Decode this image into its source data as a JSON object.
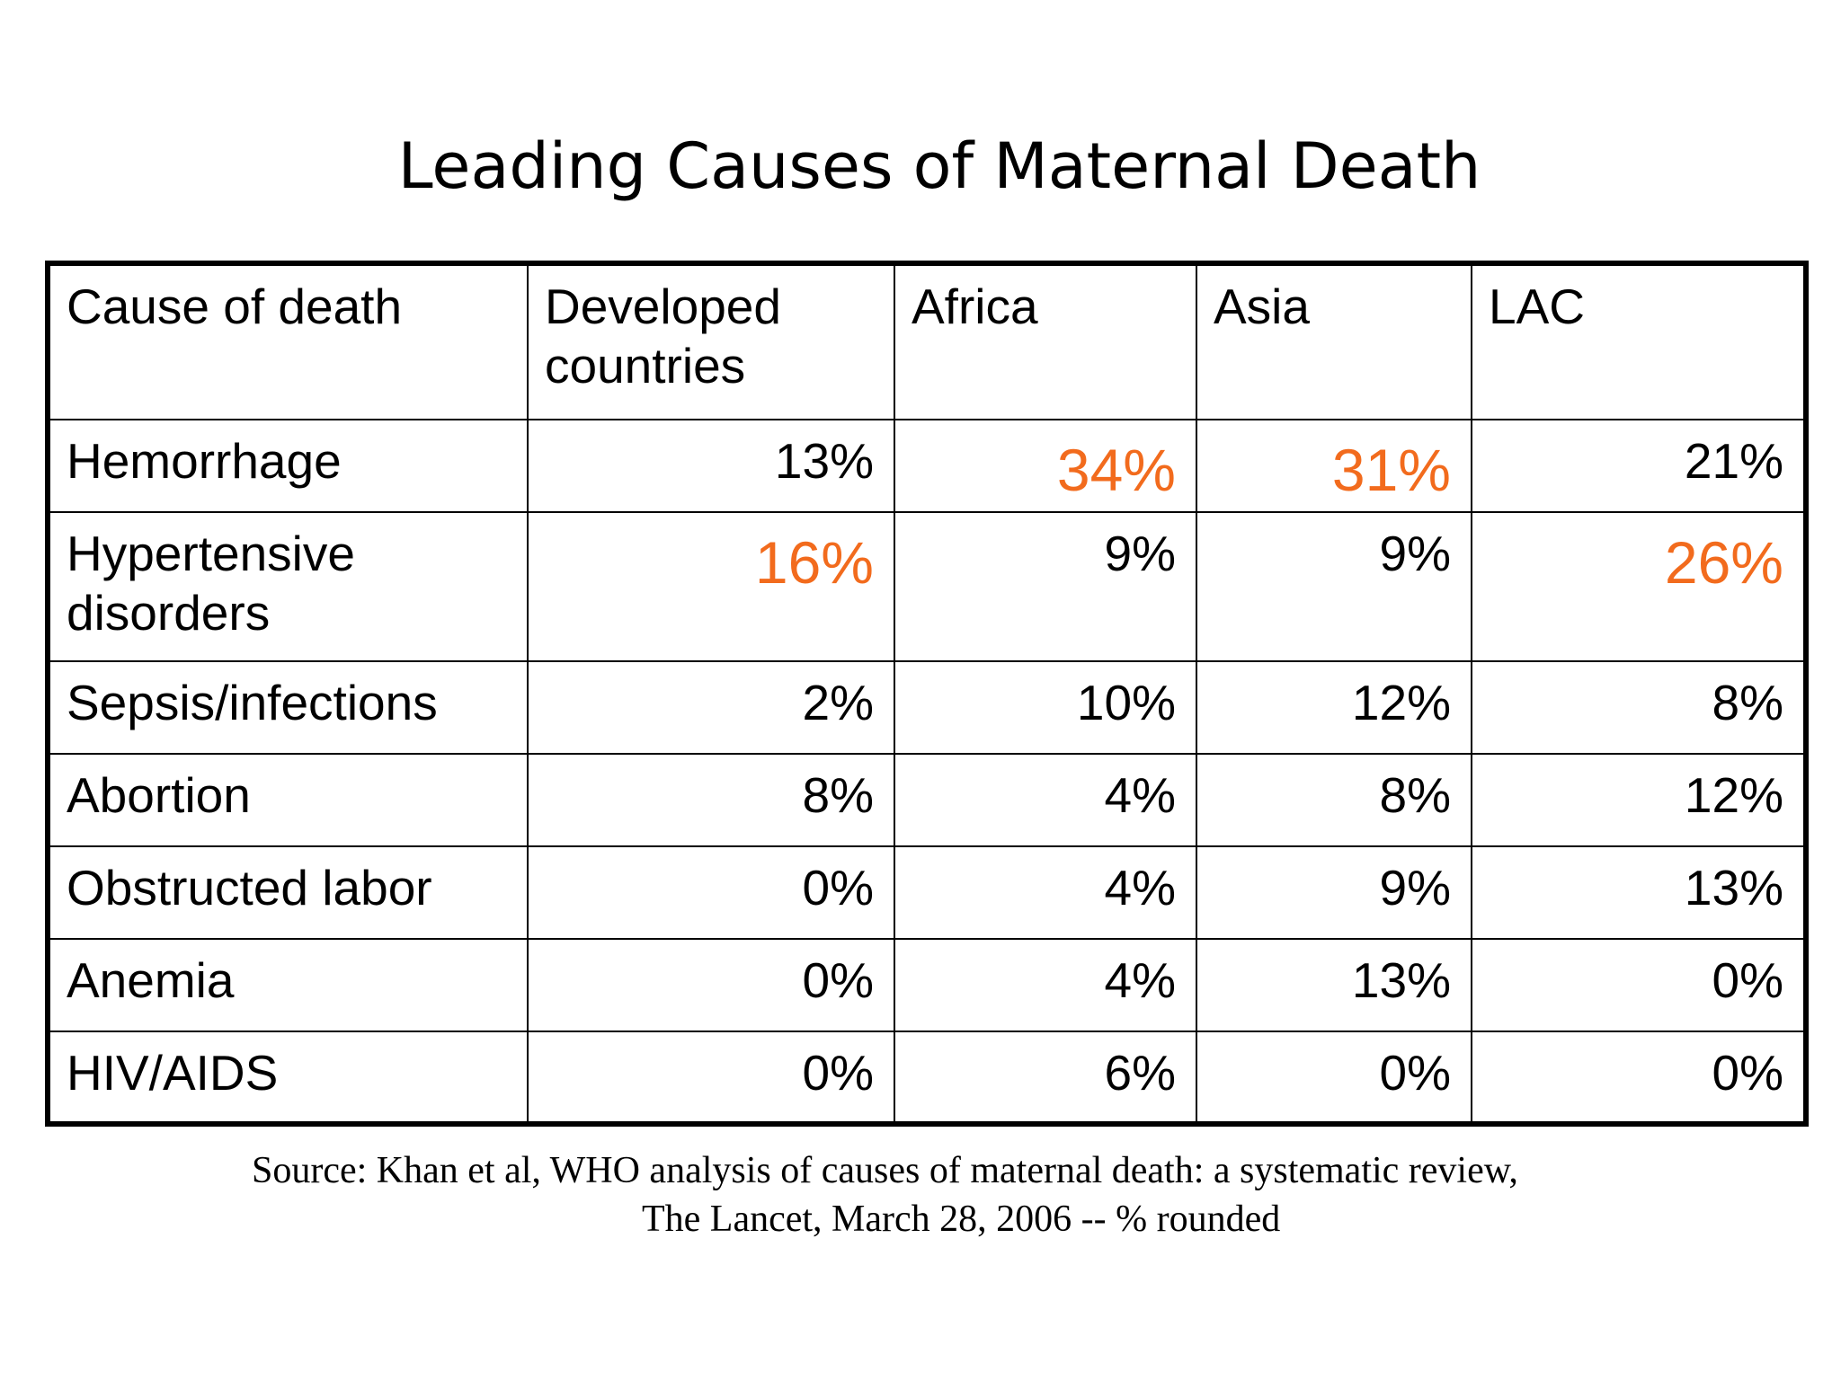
{
  "title": "Leading Causes of Maternal Death",
  "table": {
    "headers": [
      "Cause of death",
      "Developed countries",
      "Africa",
      "Asia",
      "LAC"
    ],
    "rows": [
      {
        "cause": "Hemorrhage",
        "values": [
          "13%",
          "34%",
          "31%",
          "21%"
        ],
        "highlight": [
          false,
          true,
          true,
          false
        ]
      },
      {
        "cause": "Hypertensive disorders",
        "values": [
          "16%",
          "9%",
          "9%",
          "26%"
        ],
        "highlight": [
          true,
          false,
          false,
          true
        ]
      },
      {
        "cause": "Sepsis/infections",
        "values": [
          "2%",
          "10%",
          "12%",
          "8%"
        ],
        "highlight": [
          false,
          false,
          false,
          false
        ]
      },
      {
        "cause": "Abortion",
        "values": [
          "8%",
          "4%",
          "8%",
          "12%"
        ],
        "highlight": [
          false,
          false,
          false,
          false
        ]
      },
      {
        "cause": "Obstructed labor",
        "values": [
          "0%",
          "4%",
          "9%",
          "13%"
        ],
        "highlight": [
          false,
          false,
          false,
          false
        ]
      },
      {
        "cause": "Anemia",
        "values": [
          "0%",
          "4%",
          "13%",
          "0%"
        ],
        "highlight": [
          false,
          false,
          false,
          false
        ]
      },
      {
        "cause": "HIV/AIDS",
        "values": [
          "0%",
          "6%",
          "0%",
          "0%"
        ],
        "highlight": [
          false,
          false,
          false,
          false
        ]
      }
    ]
  },
  "source": {
    "line1": "Source: Khan et al, WHO analysis of causes of maternal death: a systematic review,",
    "line2": "The Lancet, March 28, 2006  -- % rounded"
  },
  "colors": {
    "highlight": "#f26b1d",
    "text": "#000000",
    "background": "#ffffff"
  }
}
